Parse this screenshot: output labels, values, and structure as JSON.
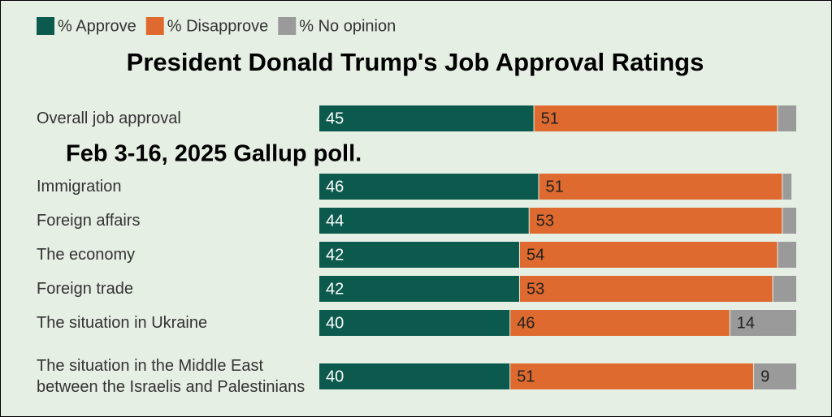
{
  "chart_data": {
    "type": "bar",
    "orientation": "horizontal",
    "stacked": true,
    "title": "President Donald Trump's Job Approval Ratings",
    "subtitle": "Feb 3-16, 2025 Gallup poll.",
    "categories": [
      "Overall job approval",
      "Immigration",
      "Foreign affairs",
      "The economy",
      "Foreign trade",
      "The situation in Ukraine",
      "The situation in the Middle East between the Israelis and Palestinians"
    ],
    "series": [
      {
        "name": "% Approve",
        "color": "#0b5a4d",
        "values": [
          45,
          46,
          44,
          42,
          42,
          40,
          40
        ]
      },
      {
        "name": "% Disapprove",
        "color": "#de6a2f",
        "values": [
          51,
          51,
          53,
          54,
          53,
          46,
          51
        ]
      },
      {
        "name": "% No opinion",
        "color": "#9a9a9a",
        "values": [
          4,
          2,
          3,
          4,
          5,
          14,
          9
        ]
      }
    ],
    "xlim": [
      0,
      100
    ],
    "legend": "top-left"
  }
}
